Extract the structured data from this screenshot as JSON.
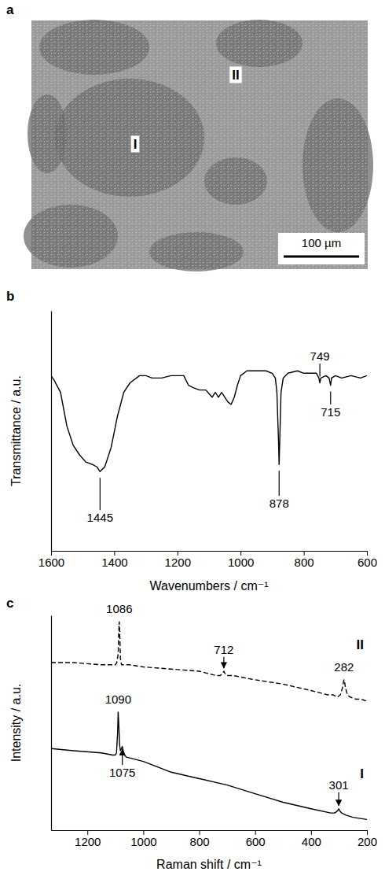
{
  "image": {
    "title": "a",
    "labels": [
      "I",
      "II"
    ],
    "scale_bar": "100 µm"
  },
  "chart_data": [
    {
      "type": "line",
      "title": "b",
      "xlabel": "Wavenumbers / cm⁻¹",
      "ylabel": "Transmittance / a.u.",
      "xlim": [
        1600,
        600
      ],
      "xticks": [
        1600,
        1400,
        1200,
        1000,
        800,
        600
      ],
      "ylim": [
        0,
        100
      ],
      "yticks": [],
      "tick_labels": "x",
      "grid": false,
      "series": [
        {
          "color": "#000000",
          "line_style": "solid",
          "x": [
            1600,
            1590,
            1570,
            1550,
            1530,
            1510,
            1490,
            1470,
            1455,
            1445,
            1430,
            1410,
            1390,
            1370,
            1350,
            1320,
            1300,
            1280,
            1250,
            1220,
            1200,
            1180,
            1165,
            1150,
            1130,
            1110,
            1090,
            1080,
            1070,
            1060,
            1040,
            1030,
            1020,
            1010,
            1000,
            980,
            950,
            920,
            900,
            890,
            885,
            880,
            878,
            876,
            872,
            865,
            850,
            820,
            800,
            780,
            760,
            752,
            749,
            746,
            730,
            720,
            715,
            712,
            700,
            680,
            650,
            620,
            600
          ],
          "values": [
            73,
            71,
            66,
            52,
            44,
            40,
            37,
            36,
            35,
            33,
            35,
            43,
            56,
            66,
            70,
            73,
            73,
            72,
            72,
            73,
            73,
            73,
            69,
            68,
            67,
            67,
            64,
            66,
            64,
            66,
            62,
            61,
            64,
            69,
            73,
            75,
            75,
            75,
            74,
            72,
            66,
            46,
            36,
            46,
            66,
            72,
            74,
            75,
            74,
            74,
            74,
            72,
            70,
            72,
            73,
            72,
            69,
            72,
            73,
            72,
            73,
            72,
            73
          ]
        }
      ],
      "annotations": [
        {
          "text": "1445",
          "x": 1445,
          "y": 14
        },
        {
          "text": "878",
          "x": 878,
          "y": 20
        },
        {
          "text": "749",
          "x": 749,
          "y": 81
        },
        {
          "text": "715",
          "x": 715,
          "y": 58
        }
      ]
    },
    {
      "type": "line",
      "title": "c",
      "xlabel": "Raman shift / cm⁻¹",
      "ylabel": "Intensity / a.u.",
      "xlim": [
        1330,
        200
      ],
      "xticks": [
        1200,
        1000,
        800,
        600,
        400,
        200
      ],
      "ylim": [
        0,
        100
      ],
      "yticks": [],
      "tick_labels": "x",
      "grid": false,
      "series": [
        {
          "name": "II",
          "color": "#000000",
          "line_style": "dashed",
          "x": [
            1330,
            1250,
            1150,
            1110,
            1100,
            1095,
            1090,
            1088,
            1086,
            1084,
            1082,
            1078,
            1070,
            1050,
            1000,
            900,
            800,
            740,
            725,
            716,
            712,
            708,
            700,
            680,
            600,
            500,
            400,
            340,
            320,
            305,
            295,
            288,
            284,
            282,
            280,
            276,
            270,
            260,
            240,
            220,
            200
          ],
          "values": [
            78,
            78,
            77,
            77,
            77,
            78,
            82,
            92,
            97,
            90,
            80,
            77,
            77,
            77,
            76,
            75,
            74,
            72,
            72,
            73,
            74,
            73,
            72,
            72,
            70,
            68,
            65,
            63,
            63,
            62,
            63,
            66,
            69,
            70,
            69,
            66,
            63,
            62,
            61,
            61,
            60
          ]
        },
        {
          "name": "I",
          "color": "#000000",
          "line_style": "solid",
          "x": [
            1330,
            1250,
            1150,
            1110,
            1100,
            1096,
            1092,
            1090,
            1088,
            1085,
            1082,
            1078,
            1075,
            1072,
            1068,
            1060,
            1000,
            900,
            800,
            700,
            600,
            500,
            400,
            330,
            315,
            305,
            301,
            297,
            290,
            275,
            250,
            200
          ],
          "values": [
            38,
            37,
            36,
            35,
            35,
            36,
            45,
            55,
            50,
            40,
            37,
            38,
            39,
            37,
            35,
            34,
            32,
            27,
            24,
            21,
            17,
            13,
            10,
            8,
            8,
            9,
            10,
            9,
            8,
            7,
            6,
            5
          ]
        }
      ],
      "annotations": [
        {
          "text": "1086",
          "x": 1086,
          "y": 103
        },
        {
          "text": "712",
          "x": 712,
          "y": 84,
          "arrow": true
        },
        {
          "text": "282",
          "x": 282,
          "y": 76
        },
        {
          "text": "1090",
          "x": 1090,
          "y": 61
        },
        {
          "text": "1075",
          "x": 1075,
          "y": 27,
          "arrow": true
        },
        {
          "text": "301",
          "x": 301,
          "y": 21,
          "arrow": true
        }
      ]
    }
  ]
}
